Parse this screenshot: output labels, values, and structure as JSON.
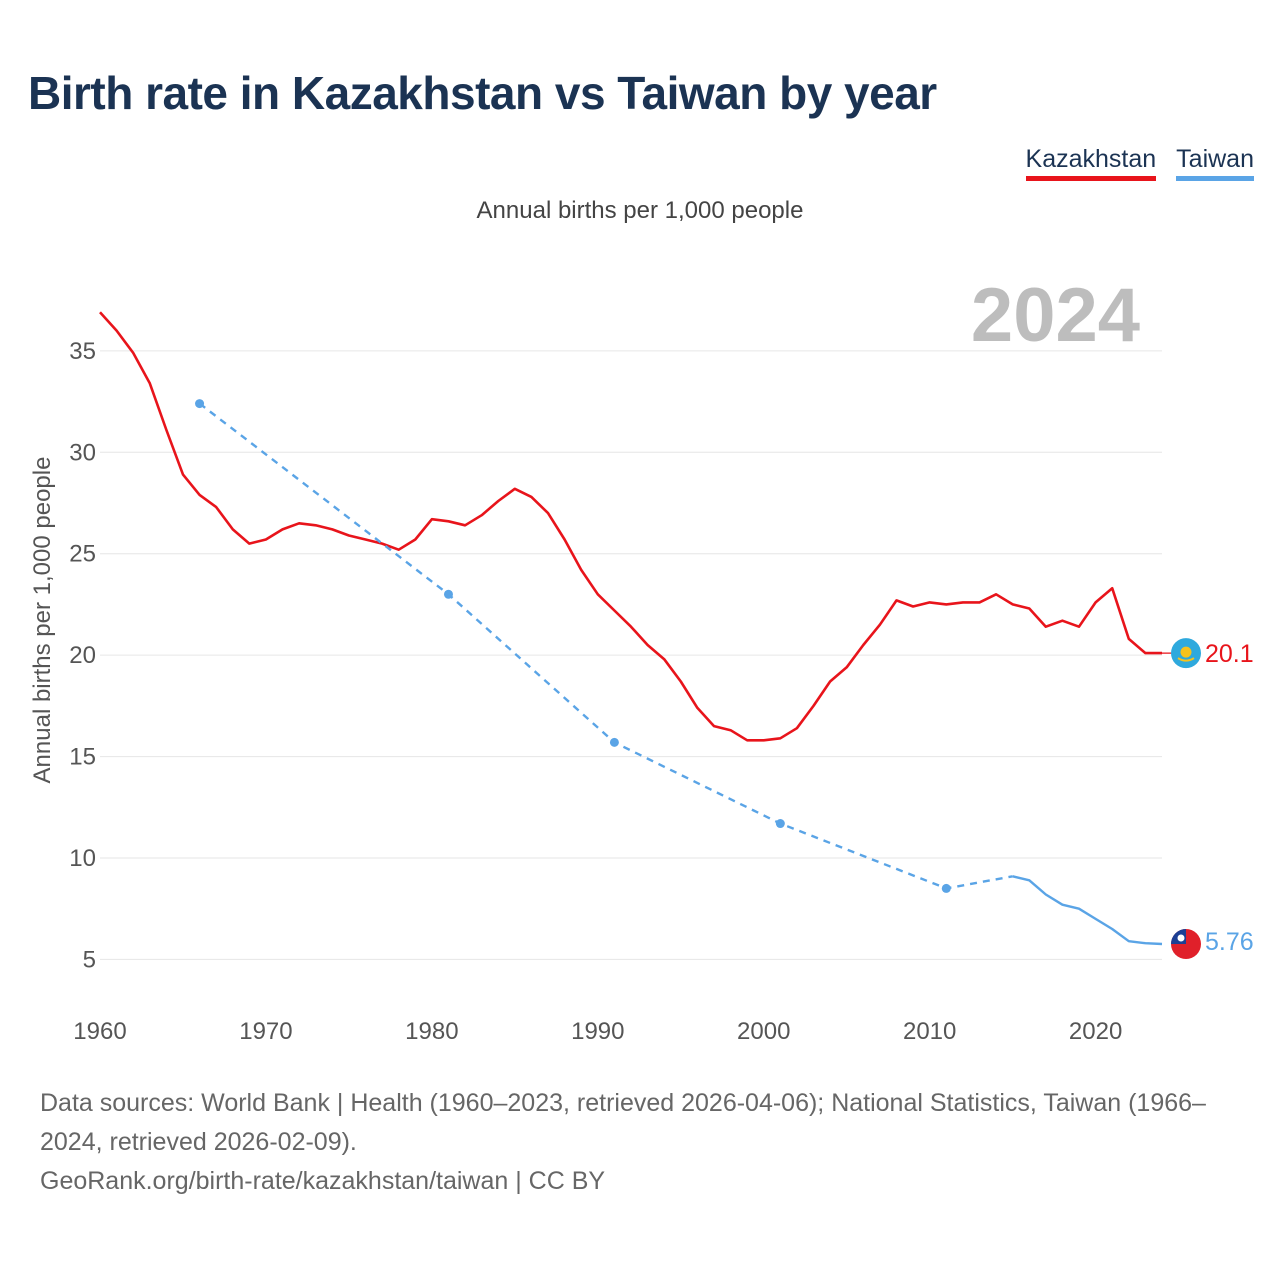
{
  "title": "Birth rate in Kazakhstan vs Taiwan by year",
  "subtitle": "Annual births per 1,000 people",
  "year_overlay": "2024",
  "source": {
    "line1": "Data sources: World Bank | Health (1960–2023, retrieved 2026-04-06); National Statistics, Taiwan (1966–2024, retrieved 2026-02-09).",
    "line2": "GeoRank.org/birth-rate/kazakhstan/taiwan | CC BY"
  },
  "colors": {
    "kazakhstan": "#e8141b",
    "taiwan": "#5aa4e6",
    "grid": "#e6e6e6"
  },
  "chart_data": {
    "type": "line",
    "title": "Birth rate in Kazakhstan vs Taiwan by year",
    "subtitle": "Annual births per 1,000 people",
    "xlabel": "",
    "ylabel": "Annual births per 1,000 people",
    "xlim": [
      1960,
      2024
    ],
    "ylim": [
      3,
      38
    ],
    "x_ticks": [
      1960,
      1970,
      1980,
      1990,
      2000,
      2010,
      2020
    ],
    "y_ticks": [
      5,
      10,
      15,
      20,
      25,
      30,
      35
    ],
    "grid": "horizontal",
    "legend": "top-right",
    "series": [
      {
        "name": "Kazakhstan",
        "color": "#e8141b",
        "end_label": "20.1",
        "flag_icon": "kazakhstan-flag-icon",
        "x": [
          1960,
          1961,
          1962,
          1963,
          1964,
          1965,
          1966,
          1967,
          1968,
          1969,
          1970,
          1971,
          1972,
          1973,
          1974,
          1975,
          1976,
          1977,
          1978,
          1979,
          1980,
          1981,
          1982,
          1983,
          1984,
          1985,
          1986,
          1987,
          1988,
          1989,
          1990,
          1991,
          1992,
          1993,
          1994,
          1995,
          1996,
          1997,
          1998,
          1999,
          2000,
          2001,
          2002,
          2003,
          2004,
          2005,
          2006,
          2007,
          2008,
          2009,
          2010,
          2011,
          2012,
          2013,
          2014,
          2015,
          2016,
          2017,
          2018,
          2019,
          2020,
          2021,
          2022,
          2023,
          2024
        ],
        "y": [
          36.9,
          36.0,
          34.9,
          33.4,
          31.1,
          28.9,
          27.9,
          27.3,
          26.2,
          25.5,
          25.7,
          26.2,
          26.5,
          26.4,
          26.2,
          25.9,
          25.7,
          25.5,
          25.2,
          25.7,
          26.7,
          26.6,
          26.4,
          26.9,
          27.6,
          28.2,
          27.8,
          27.0,
          25.7,
          24.2,
          23.0,
          22.2,
          21.4,
          20.5,
          19.8,
          18.7,
          17.4,
          16.5,
          16.3,
          15.8,
          15.8,
          15.9,
          16.4,
          17.5,
          18.7,
          19.4,
          20.5,
          21.5,
          22.7,
          22.4,
          22.6,
          22.5,
          22.6,
          22.6,
          23.0,
          22.5,
          22.3,
          21.4,
          21.7,
          21.4,
          22.6,
          23.3,
          20.8,
          20.1,
          20.1
        ]
      },
      {
        "name": "Taiwan",
        "color": "#5aa4e6",
        "end_label": "5.76",
        "flag_icon": "taiwan-flag-icon",
        "x": [
          1966,
          1981,
          1991,
          2001,
          2011,
          2015,
          2016,
          2017,
          2018,
          2019,
          2020,
          2021,
          2022,
          2023,
          2024
        ],
        "y": [
          32.4,
          23.0,
          15.7,
          11.7,
          8.5,
          9.1,
          8.9,
          8.2,
          7.7,
          7.5,
          7.0,
          6.5,
          5.9,
          5.8,
          5.76
        ],
        "sparse_points": [
          1966,
          1981,
          1991,
          2001,
          2011
        ]
      }
    ]
  }
}
